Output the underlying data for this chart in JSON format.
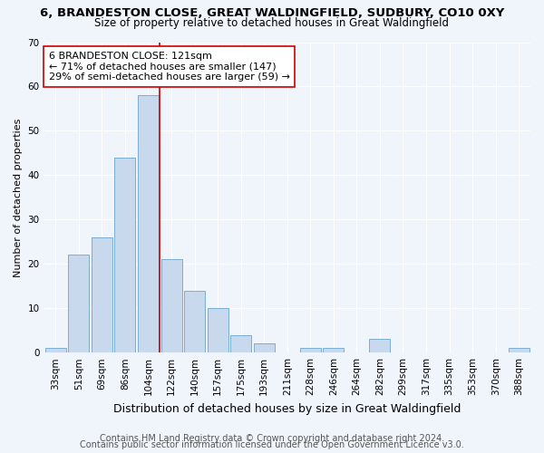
{
  "title1": "6, BRANDESTON CLOSE, GREAT WALDINGFIELD, SUDBURY, CO10 0XY",
  "title2": "Size of property relative to detached houses in Great Waldingfield",
  "xlabel": "Distribution of detached houses by size in Great Waldingfield",
  "ylabel": "Number of detached properties",
  "bar_labels": [
    "33sqm",
    "51sqm",
    "69sqm",
    "86sqm",
    "104sqm",
    "122sqm",
    "140sqm",
    "157sqm",
    "175sqm",
    "193sqm",
    "211sqm",
    "228sqm",
    "246sqm",
    "264sqm",
    "282sqm",
    "299sqm",
    "317sqm",
    "335sqm",
    "353sqm",
    "370sqm",
    "388sqm"
  ],
  "bar_values": [
    1,
    22,
    26,
    44,
    58,
    21,
    14,
    10,
    4,
    2,
    0,
    1,
    1,
    0,
    3,
    0,
    0,
    0,
    0,
    0,
    1
  ],
  "bar_color": "#c9d9ed",
  "bar_edgecolor": "#7aadd4",
  "vline_x_index": 4.5,
  "vline_color": "#cc0000",
  "annotation_text": "6 BRANDESTON CLOSE: 121sqm\n← 71% of detached houses are smaller (147)\n29% of semi-detached houses are larger (59) →",
  "annotation_box_edgecolor": "#cc0000",
  "annotation_box_facecolor": "#ffffff",
  "ylim": [
    0,
    70
  ],
  "yticks": [
    0,
    10,
    20,
    30,
    40,
    50,
    60,
    70
  ],
  "footer1": "Contains HM Land Registry data © Crown copyright and database right 2024.",
  "footer2": "Contains public sector information licensed under the Open Government Licence v3.0.",
  "bg_color": "#f0f4fb",
  "plot_bg_color": "#f0f4fb",
  "title1_fontsize": 9.5,
  "title2_fontsize": 8.5,
  "xlabel_fontsize": 9,
  "ylabel_fontsize": 8,
  "tick_fontsize": 7.5,
  "footer_fontsize": 7,
  "annotation_fontsize": 8
}
